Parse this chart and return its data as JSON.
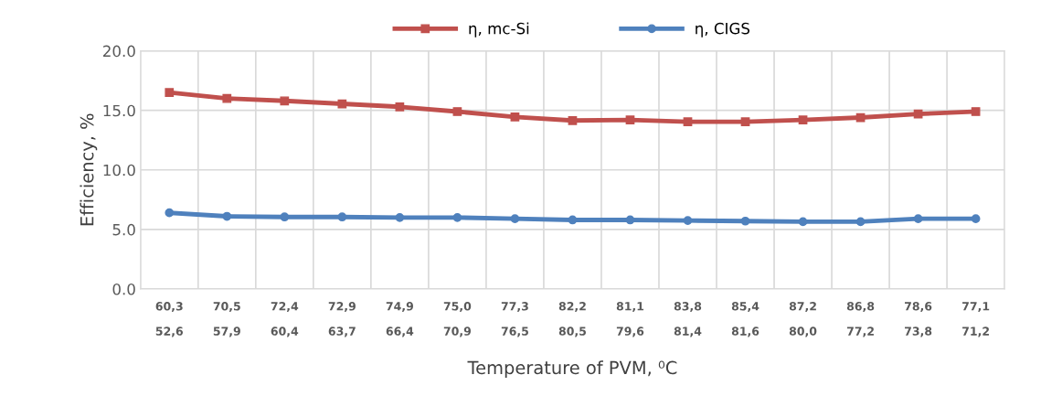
{
  "chart_data": {
    "type": "line",
    "xlabel": "Temperature of PVM, ⁰C",
    "ylabel": "Efficiency, %",
    "categories": [
      "60,3\n52,6",
      "70,5\n57,9",
      "72,4\n60,4",
      "72,9\n63,7",
      "74,9\n66,4",
      "75,0\n70,9",
      "77,3\n76,5",
      "82,2\n80,5",
      "81,1\n79,6",
      "83,8\n81,4",
      "85,4\n81,6",
      "87,2\n80,0",
      "86,8\n77,2",
      "78,6\n73,8",
      "77,1\n71,2"
    ],
    "series": [
      {
        "name": "η, mc-Si",
        "color": "#c0504d",
        "marker": "square",
        "values": [
          16.5,
          16.0,
          15.8,
          15.55,
          15.3,
          14.9,
          14.45,
          14.15,
          14.2,
          14.05,
          14.05,
          14.2,
          14.4,
          14.7,
          14.9
        ]
      },
      {
        "name": "η, CIGS",
        "color": "#4f81bd",
        "marker": "circle",
        "values": [
          6.4,
          6.1,
          6.05,
          6.05,
          6.0,
          6.0,
          5.9,
          5.8,
          5.8,
          5.75,
          5.7,
          5.65,
          5.65,
          5.9,
          5.9
        ]
      }
    ],
    "ylim": [
      0,
      20
    ],
    "yticks": [
      {
        "value": 0,
        "label": "0.0"
      },
      {
        "value": 5,
        "label": "5.0"
      },
      {
        "value": 10,
        "label": "10.0"
      },
      {
        "value": 15,
        "label": "15.0"
      },
      {
        "value": 20,
        "label": "20.0"
      }
    ],
    "grid": true,
    "legend": "top",
    "line_style": "solid"
  }
}
